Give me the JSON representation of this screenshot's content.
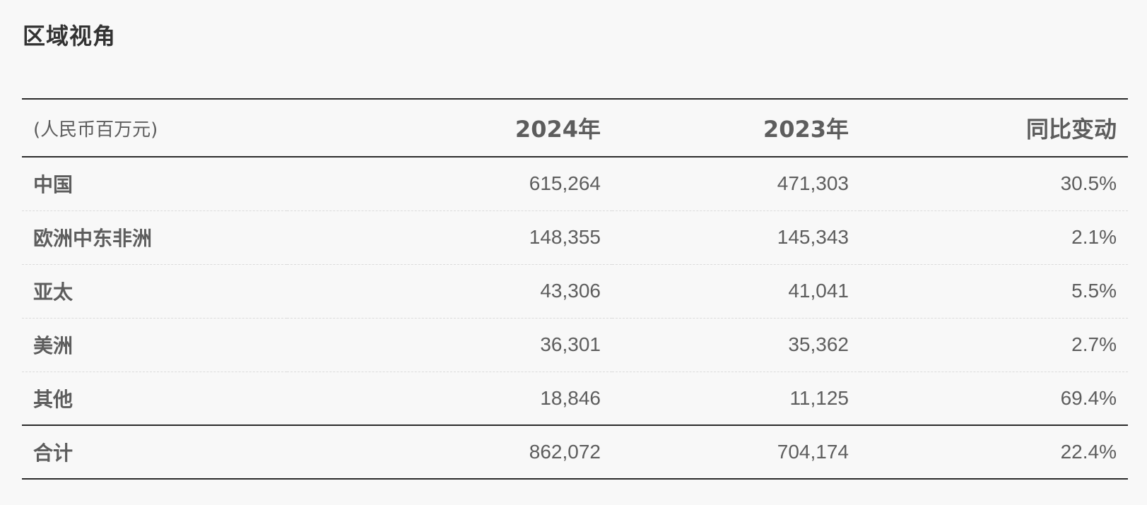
{
  "title": "区域视角",
  "table": {
    "headers": {
      "unit": "(人民币百万元)",
      "y2024": "2024年",
      "y2023": "2023年",
      "yoy": "同比变动"
    },
    "rows": [
      {
        "region": "中国",
        "y2024": "615,264",
        "y2023": "471,303",
        "yoy": "30.5%"
      },
      {
        "region": "欧洲中东非洲",
        "y2024": "148,355",
        "y2023": "145,343",
        "yoy": "2.1%"
      },
      {
        "region": "亚太",
        "y2024": "43,306",
        "y2023": "41,041",
        "yoy": "5.5%"
      },
      {
        "region": "美洲",
        "y2024": "36,301",
        "y2023": "35,362",
        "yoy": "2.7%"
      },
      {
        "region": "其他",
        "y2024": "18,846",
        "y2023": "11,125",
        "yoy": "69.4%"
      }
    ],
    "total": {
      "label": "合计",
      "y2024": "862,072",
      "y2023": "704,174",
      "yoy": "22.4%"
    }
  }
}
